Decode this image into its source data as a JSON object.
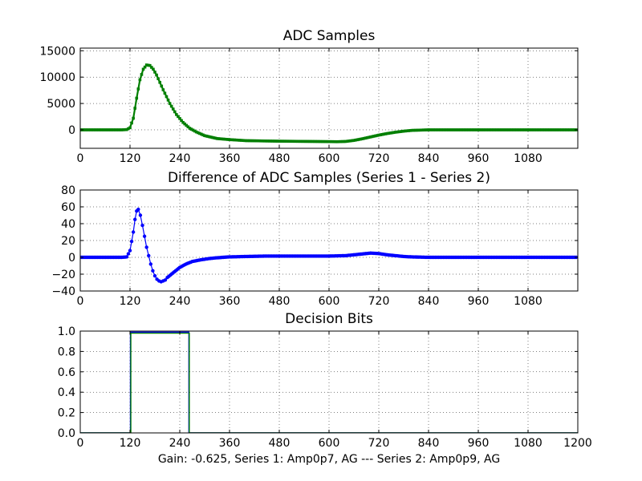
{
  "figure": {
    "caption": "Gain: -0.625, Series 1: Amp0p7, AG --- Series 2: Amp0p9, AG"
  },
  "chart_data": [
    {
      "type": "line",
      "title": "ADC Samples",
      "xlabel": "",
      "ylabel": "",
      "xlim": [
        0,
        1200
      ],
      "ylim": [
        -3500,
        15500
      ],
      "xticks": [
        "0",
        "120",
        "240",
        "360",
        "480",
        "600",
        "720",
        "840",
        "960",
        "1080"
      ],
      "yticks": [
        "0",
        "5000",
        "10000",
        "15000"
      ],
      "grid": true,
      "colors": {
        "series": "#007f00"
      },
      "series": [
        {
          "x": [
            0,
            100,
            112,
            120,
            128,
            136,
            144,
            152,
            160,
            168,
            176,
            184,
            192,
            200,
            216,
            232,
            248,
            264,
            280,
            300,
            330,
            360,
            400,
            480,
            560,
            620,
            640,
            660,
            680,
            700,
            720,
            740,
            760,
            780,
            800,
            820,
            840,
            900,
            1000,
            1100,
            1200
          ],
          "y": [
            0,
            0,
            50,
            400,
            2200,
            6000,
            9500,
            11500,
            12300,
            12200,
            11500,
            10400,
            9000,
            7600,
            5000,
            2900,
            1400,
            300,
            -400,
            -1100,
            -1650,
            -1850,
            -2050,
            -2150,
            -2200,
            -2250,
            -2200,
            -2000,
            -1700,
            -1350,
            -1000,
            -700,
            -450,
            -250,
            -100,
            -50,
            0,
            0,
            0,
            0,
            0
          ]
        }
      ]
    },
    {
      "type": "line",
      "title": "Difference of ADC Samples (Series 1 - Series 2)",
      "xlabel": "",
      "ylabel": "",
      "xlim": [
        0,
        1200
      ],
      "ylim": [
        -40,
        80
      ],
      "xticks": [
        "0",
        "120",
        "240",
        "360",
        "480",
        "600",
        "720",
        "840",
        "960",
        "1080"
      ],
      "yticks": [
        "−40",
        "−20",
        "0",
        "20",
        "40",
        "60",
        "80"
      ],
      "grid": true,
      "colors": {
        "series": "#0000ff"
      },
      "series": [
        {
          "x": [
            0,
            50,
            100,
            112,
            120,
            128,
            132,
            136,
            140,
            145,
            150,
            155,
            160,
            165,
            170,
            175,
            180,
            185,
            190,
            195,
            200,
            205,
            210,
            220,
            230,
            240,
            255,
            270,
            290,
            310,
            330,
            360,
            400,
            450,
            500,
            550,
            600,
            640,
            660,
            680,
            700,
            720,
            740,
            760,
            780,
            800,
            840,
            900,
            1000,
            1100,
            1200
          ],
          "y": [
            0,
            0,
            0,
            0.5,
            8,
            30,
            45,
            55,
            57,
            50,
            38,
            25,
            12,
            2,
            -8,
            -16,
            -22,
            -26,
            -28,
            -29,
            -28,
            -27,
            -24,
            -20,
            -16,
            -12,
            -8,
            -5,
            -3,
            -1.5,
            -0.5,
            0.5,
            1,
            1.5,
            1.5,
            1.5,
            1.5,
            2,
            3,
            4,
            5,
            4.5,
            3,
            2,
            1,
            0.5,
            0,
            0,
            0,
            0,
            0
          ]
        }
      ]
    },
    {
      "type": "line",
      "title": "Decision Bits",
      "xlabel": "Gain: -0.625, Series 1: Amp0p7, AG --- Series 2: Amp0p9, AG",
      "ylabel": "",
      "xlim": [
        0,
        1200
      ],
      "ylim": [
        0,
        1
      ],
      "xticks": [
        "0",
        "120",
        "240",
        "360",
        "480",
        "600",
        "720",
        "840",
        "960",
        "1080",
        "1200"
      ],
      "yticks": [
        "0.0",
        "0.2",
        "0.4",
        "0.6",
        "0.8",
        "1.0"
      ],
      "grid": true,
      "colors": {
        "series_a": "#0000ff",
        "series_b": "#007f00"
      },
      "series": [
        {
          "x": [
            0,
            121,
            121,
            262,
            262,
            1200
          ],
          "y": [
            0,
            0,
            0.99,
            0.99,
            0,
            0
          ]
        },
        {
          "x": [
            0,
            122,
            122,
            263,
            263,
            1200
          ],
          "y": [
            0,
            0,
            0.98,
            0.98,
            0,
            0
          ]
        }
      ]
    }
  ]
}
